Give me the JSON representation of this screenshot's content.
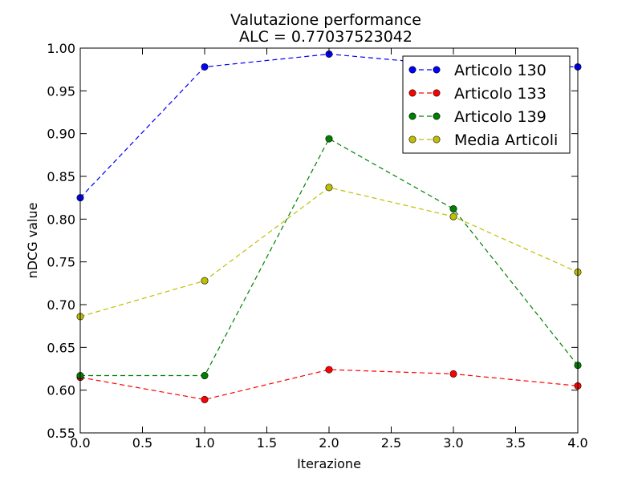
{
  "chart_data": {
    "type": "line",
    "title": "Valutazione performance",
    "subtitle": "ALC = 0.77037523042",
    "xlabel": "Iterazione",
    "ylabel": "nDCG value",
    "xlim": [
      0.0,
      4.0
    ],
    "ylim": [
      0.55,
      1.0
    ],
    "xticks": [
      0.0,
      0.5,
      1.0,
      1.5,
      2.0,
      2.5,
      3.0,
      3.5,
      4.0
    ],
    "xtick_labels": [
      "0.0",
      "0.5",
      "1.0",
      "1.5",
      "2.0",
      "2.5",
      "3.0",
      "3.5",
      "4.0"
    ],
    "yticks": [
      0.55,
      0.6,
      0.65,
      0.7,
      0.75,
      0.8,
      0.85,
      0.9,
      0.95,
      1.0
    ],
    "ytick_labels": [
      "0.55",
      "0.60",
      "0.65",
      "0.70",
      "0.75",
      "0.80",
      "0.85",
      "0.90",
      "0.95",
      "1.00"
    ],
    "grid": false,
    "legend_position": "top-right",
    "x": [
      0,
      1,
      2,
      3,
      4
    ],
    "series": [
      {
        "name": "Articolo 130",
        "color": "#0000ff",
        "values": [
          0.825,
          0.978,
          0.993,
          0.98,
          0.978
        ]
      },
      {
        "name": "Articolo 133",
        "color": "#ff0000",
        "values": [
          0.615,
          0.589,
          0.624,
          0.619,
          0.605
        ]
      },
      {
        "name": "Articolo 139",
        "color": "#008000",
        "values": [
          0.617,
          0.617,
          0.894,
          0.812,
          0.629
        ]
      },
      {
        "name": "Media Articoli",
        "color": "#bfbf00",
        "values": [
          0.686,
          0.728,
          0.837,
          0.803,
          0.738
        ]
      }
    ]
  }
}
